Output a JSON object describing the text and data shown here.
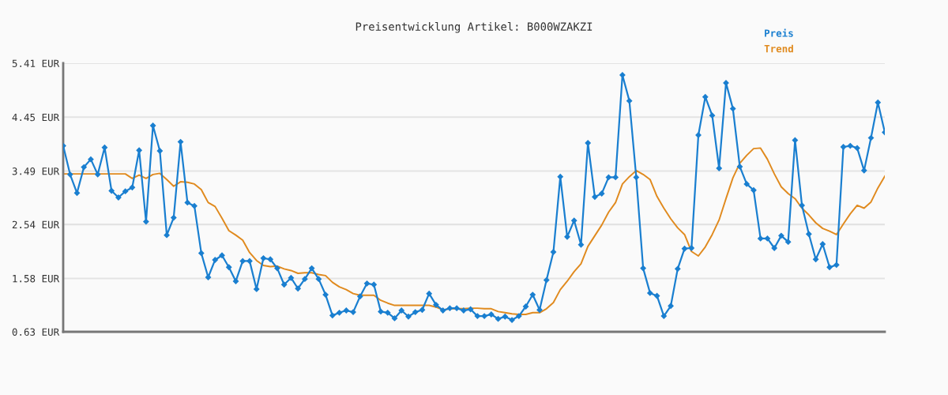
{
  "chart_data": {
    "type": "line",
    "title": "Preisentwicklung Artikel: B000WZAKZI",
    "categories": [
      null,
      null,
      null,
      null,
      null,
      null,
      null,
      null,
      null,
      null,
      null,
      null,
      null,
      null,
      null,
      null,
      null,
      null,
      null,
      null,
      null,
      null,
      null,
      null,
      null,
      null,
      null,
      null,
      null,
      null,
      null,
      null,
      null,
      null,
      null,
      null,
      null,
      null,
      null,
      null,
      null,
      null,
      null,
      null,
      null,
      null,
      null,
      null,
      null,
      null,
      null,
      null,
      null,
      null,
      null,
      null,
      null,
      null,
      null,
      null,
      null,
      null,
      null,
      null,
      null,
      null,
      null,
      null,
      null,
      null,
      null,
      null,
      null,
      null,
      null,
      null,
      null,
      null,
      null,
      null,
      null,
      null,
      null,
      null,
      null,
      null,
      null,
      null,
      null,
      null,
      null,
      null,
      null,
      null,
      null,
      null,
      null,
      null,
      null,
      null,
      null,
      null,
      null,
      null,
      null,
      null,
      null,
      null,
      null,
      null,
      null,
      null,
      null,
      null,
      null,
      null,
      null,
      null,
      null,
      null
    ],
    "series": [
      {
        "name": "Preis",
        "color": "#1a7fd0",
        "marker": "diamond",
        "values": [
          3.94,
          3.43,
          3.1,
          3.56,
          3.7,
          3.43,
          3.91,
          3.14,
          3.02,
          3.13,
          3.2,
          3.86,
          2.59,
          4.3,
          3.85,
          2.35,
          2.66,
          4.01,
          2.93,
          2.87,
          2.03,
          1.6,
          1.91,
          1.99,
          1.78,
          1.53,
          1.89,
          1.89,
          1.39,
          1.94,
          1.92,
          1.76,
          1.47,
          1.59,
          1.4,
          1.57,
          1.76,
          1.57,
          1.29,
          0.92,
          0.97,
          1.01,
          0.98,
          1.26,
          1.49,
          1.47,
          0.99,
          0.97,
          0.87,
          1.01,
          0.9,
          0.98,
          1.02,
          1.31,
          1.11,
          1.01,
          1.05,
          1.05,
          1.01,
          1.03,
          0.91,
          0.91,
          0.94,
          0.86,
          0.9,
          0.84,
          0.91,
          1.08,
          1.29,
          1.02,
          1.55,
          2.05,
          3.39,
          2.32,
          2.61,
          2.18,
          3.99,
          3.03,
          3.09,
          3.38,
          3.38,
          5.2,
          4.74,
          3.38,
          1.76,
          1.32,
          1.27,
          0.91,
          1.09,
          1.75,
          2.11,
          2.12,
          4.13,
          4.81,
          4.48,
          3.54,
          5.06,
          4.6,
          3.57,
          3.26,
          3.15,
          2.29,
          2.29,
          2.12,
          2.34,
          2.23,
          4.04,
          2.88,
          2.37,
          1.92,
          2.19,
          1.78,
          1.82,
          3.92,
          3.94,
          3.9,
          3.5,
          4.08,
          4.71,
          4.18
        ]
      },
      {
        "name": "Trend",
        "color": "#e08a1e",
        "marker": "none",
        "values": [
          3.44,
          3.44,
          3.44,
          3.44,
          3.44,
          3.44,
          3.44,
          3.44,
          3.44,
          3.44,
          3.36,
          3.42,
          3.36,
          3.43,
          3.45,
          3.34,
          3.22,
          3.3,
          3.29,
          3.26,
          3.16,
          2.93,
          2.86,
          2.65,
          2.43,
          2.35,
          2.26,
          2.04,
          1.9,
          1.81,
          1.79,
          1.8,
          1.75,
          1.72,
          1.67,
          1.68,
          1.68,
          1.65,
          1.63,
          1.51,
          1.43,
          1.38,
          1.31,
          1.28,
          1.28,
          1.28,
          1.19,
          1.14,
          1.1,
          1.1,
          1.1,
          1.1,
          1.1,
          1.1,
          1.07,
          1.02,
          1.04,
          1.04,
          1.04,
          1.05,
          1.05,
          1.04,
          1.04,
          0.99,
          0.97,
          0.95,
          0.94,
          0.94,
          0.97,
          0.97,
          1.04,
          1.15,
          1.38,
          1.53,
          1.7,
          1.84,
          2.15,
          2.34,
          2.53,
          2.76,
          2.93,
          3.26,
          3.39,
          3.5,
          3.43,
          3.34,
          3.04,
          2.83,
          2.64,
          2.48,
          2.36,
          2.06,
          1.98,
          2.14,
          2.36,
          2.62,
          3.0,
          3.37,
          3.63,
          3.77,
          3.89,
          3.9,
          3.7,
          3.44,
          3.21,
          3.09,
          3.0,
          2.83,
          2.71,
          2.57,
          2.47,
          2.42,
          2.36,
          2.55,
          2.73,
          2.88,
          2.83,
          2.94,
          3.19,
          3.4
        ]
      }
    ],
    "ylim": [
      0.63,
      5.41
    ],
    "yticks": [
      {
        "value": 0.63,
        "label": "0.63 EUR"
      },
      {
        "value": 1.58,
        "label": "1.58 EUR"
      },
      {
        "value": 2.54,
        "label": "2.54 EUR"
      },
      {
        "value": 3.49,
        "label": "3.49 EUR"
      },
      {
        "value": 4.45,
        "label": "4.45 EUR"
      },
      {
        "value": 5.41,
        "label": "5.41 EUR"
      }
    ],
    "grid": "y",
    "legend": "top right",
    "line_style": "solid"
  }
}
